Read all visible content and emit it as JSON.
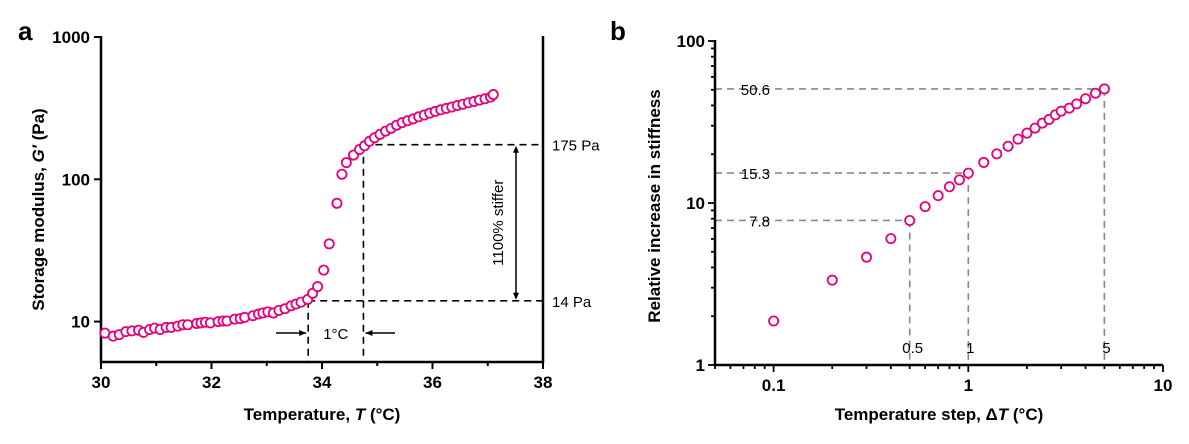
{
  "chart_data": [
    {
      "panel": "a",
      "type": "scatter",
      "xlabel": "Temperature, T (°C)",
      "xlabel_parts": [
        "Temperature, ",
        "T",
        " (°C)"
      ],
      "ylabel_parts": [
        "Storage modulus, ",
        "G′",
        " (Pa)"
      ],
      "ylabel": "Storage modulus, G′ (Pa)",
      "xlim": [
        30,
        38
      ],
      "ylim": [
        5.2,
        1000
      ],
      "yscale": "log",
      "xticks": [
        "30",
        "32",
        "34",
        "36",
        "38"
      ],
      "yticks": [
        "10",
        "100",
        "1000"
      ],
      "marker_color": "#e5007d",
      "x": [
        30.07,
        30.22,
        30.33,
        30.45,
        30.56,
        30.68,
        30.77,
        30.88,
        30.97,
        31.07,
        31.18,
        31.27,
        31.39,
        31.48,
        31.57,
        31.73,
        31.81,
        31.89,
        31.98,
        32.12,
        32.21,
        32.28,
        32.42,
        32.52,
        32.6,
        32.75,
        32.85,
        32.93,
        33.02,
        33.12,
        33.22,
        33.33,
        33.44,
        33.53,
        33.62,
        33.74,
        33.83,
        33.92,
        34.03,
        34.13,
        34.27,
        34.36,
        34.44,
        34.57,
        34.68,
        34.77,
        34.86,
        34.95,
        35.05,
        35.15,
        35.25,
        35.35,
        35.45,
        35.55,
        35.65,
        35.75,
        35.85,
        35.95,
        36.05,
        36.15,
        36.25,
        36.35,
        36.45,
        36.55,
        36.65,
        36.75,
        36.85,
        36.95,
        37.05,
        37.1
      ],
      "y": [
        8.3,
        7.9,
        8.1,
        8.5,
        8.6,
        8.7,
        8.4,
        8.8,
        9.0,
        8.8,
        9.1,
        9.1,
        9.3,
        9.5,
        9.5,
        9.7,
        9.8,
        9.9,
        9.8,
        10.0,
        10.1,
        10.1,
        10.4,
        10.5,
        10.7,
        11.0,
        11.3,
        11.5,
        11.7,
        11.5,
        12.0,
        12.3,
        12.9,
        13.3,
        13.7,
        14.3,
        15.8,
        17.6,
        23.0,
        35.2,
        67.8,
        108.5,
        131,
        148,
        162,
        172,
        185,
        196,
        207,
        218,
        228,
        240,
        250,
        258,
        266,
        275,
        283,
        292,
        300,
        308,
        315,
        322,
        330,
        337,
        345,
        352,
        360,
        368,
        378,
        394
      ],
      "annotations": {
        "upper_level_label": "175 Pa",
        "upper_level_value": 175,
        "lower_level_label": "14 Pa",
        "lower_level_value": 14,
        "t_low": 33.75,
        "t_high": 34.75,
        "span_label": "1°C",
        "stiffer_label": "1100% stiffer"
      }
    },
    {
      "panel": "b",
      "type": "scatter",
      "xlabel": "Temperature step, ΔT (°C)",
      "xlabel_parts": [
        "Temperature step,  Δ",
        "T",
        " (°C)"
      ],
      "ylabel": "Relative increase in stiffness",
      "xscale": "log",
      "yscale": "log",
      "xlim": [
        0.05,
        10
      ],
      "ylim": [
        1,
        100
      ],
      "xticks": [
        "0.1",
        "1",
        "10"
      ],
      "yticks": [
        "1",
        "10",
        "100"
      ],
      "marker_color": "#e5007d",
      "x": [
        0.1,
        0.2,
        0.3,
        0.4,
        0.5,
        0.6,
        0.7,
        0.8,
        0.9,
        1.0,
        1.2,
        1.4,
        1.6,
        1.8,
        2.0,
        2.2,
        2.4,
        2.6,
        2.8,
        3.0,
        3.3,
        3.6,
        4.0,
        4.5,
        5.0
      ],
      "y": [
        1.87,
        3.34,
        4.63,
        6.03,
        7.8,
        9.5,
        11.1,
        12.6,
        13.9,
        15.3,
        17.8,
        20.1,
        22.4,
        24.8,
        27.0,
        29.0,
        31.1,
        32.8,
        35.0,
        36.9,
        38.5,
        40.9,
        44.0,
        47.6,
        50.6
      ],
      "annotations": [
        {
          "x": 0.5,
          "y": 7.8,
          "x_label": "0.5",
          "y_label": "7.8"
        },
        {
          "x": 1,
          "y": 15.3,
          "x_label": "1",
          "y_label": "15.3"
        },
        {
          "x": 5,
          "y": 50.6,
          "x_label": "5",
          "y_label": "50.6"
        }
      ]
    }
  ],
  "panel_labels": [
    "a",
    "b"
  ]
}
